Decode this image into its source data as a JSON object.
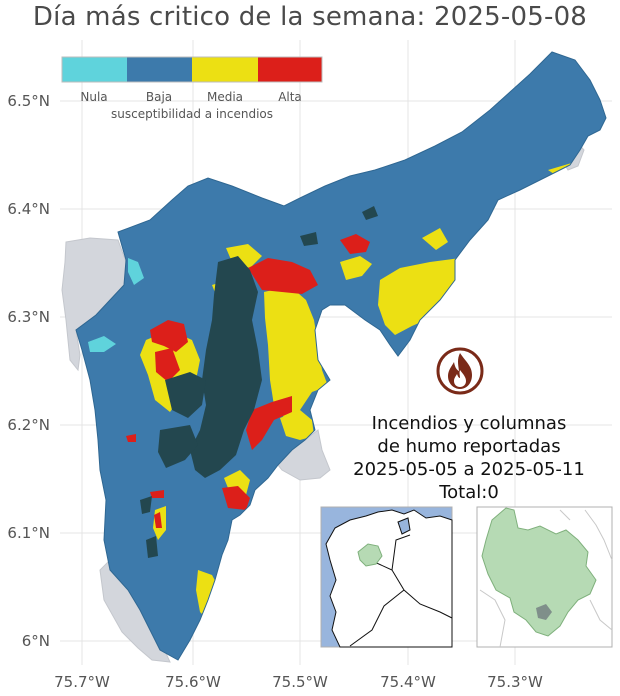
{
  "title": "Día más critico de la semana: 2025-05-08",
  "map": {
    "x_ticks": [
      "75.7°W",
      "75.6°W",
      "75.5°W",
      "75.4°W",
      "75.3°W"
    ],
    "y_ticks": [
      "6.5°N",
      "6.4°N",
      "6.3°N",
      "6.2°N",
      "6.1°N",
      "6°N"
    ]
  },
  "legend": {
    "title": "susceptibilidad a incendios",
    "classes": [
      {
        "label": "Nula",
        "color": "#5fd3dc"
      },
      {
        "label": "Baja",
        "color": "#3d7aab"
      },
      {
        "label": "Media",
        "color": "#ece013"
      },
      {
        "label": "Alta",
        "color": "#dc1f1a"
      }
    ]
  },
  "colors": {
    "cluster": "#23474f",
    "surroundings": "#d3d6dc",
    "sea": "#98b5dd",
    "department_highlight": "#b6dab4",
    "fire_icon": "#7a2a18"
  },
  "fire_report": {
    "icon": "fire-icon",
    "line1": "Incendios y columnas",
    "line2": "de humo reportadas",
    "line3": "2025-05-05 a 2025-05-11",
    "line4": "Total:0"
  },
  "insets": {
    "country_inset": "colombia-locator-map",
    "department_inset": "antioquia-locator-map"
  }
}
